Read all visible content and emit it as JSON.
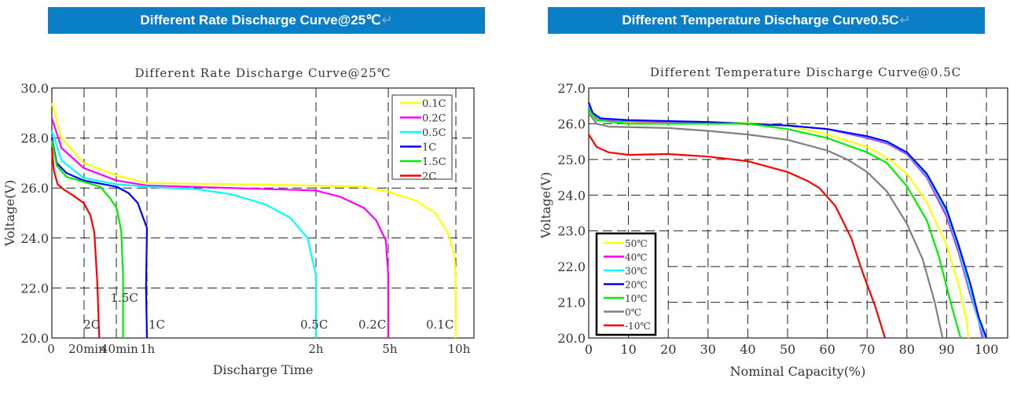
{
  "banners": {
    "left": {
      "text": "Different Rate Discharge Curve@25℃",
      "mark": "↵"
    },
    "right": {
      "text": "Different Temperature Discharge Curve0.5C",
      "mark": "↵"
    }
  },
  "chart_data": [
    {
      "type": "line",
      "title": "Different Rate Discharge Curve@25℃",
      "xlabel": "Discharge Time",
      "ylabel": "Voltage(V)",
      "ylim": [
        20,
        30
      ],
      "yticks": [
        20,
        22,
        24,
        26,
        28,
        30
      ],
      "ytick_labels": [
        "20.0",
        "22.0",
        "24.0",
        "26.0",
        "28.0",
        "30.0"
      ],
      "x_unit": "hours (piecewise axis)",
      "xticks": [
        0,
        0.3333,
        0.6667,
        1,
        2,
        5,
        10
      ],
      "xtick_labels": [
        "0",
        "20min",
        "40min",
        "1h",
        "2h",
        "5h",
        "10h"
      ],
      "grid": true,
      "legend_position": "top-right",
      "series": [
        {
          "name": "0.1C",
          "color": "#ffff00",
          "label": "0.1C",
          "points": [
            [
              0,
              29.4
            ],
            [
              0.1,
              28
            ],
            [
              0.33,
              27
            ],
            [
              0.67,
              26.5
            ],
            [
              1,
              26.2
            ],
            [
              2,
              26.1
            ],
            [
              4,
              26.05
            ],
            [
              5,
              25.85
            ],
            [
              7,
              25.5
            ],
            [
              8.5,
              25
            ],
            [
              9.4,
              24.2
            ],
            [
              9.9,
              23.3
            ],
            [
              10,
              22
            ],
            [
              10,
              20
            ]
          ]
        },
        {
          "name": "0.2C",
          "color": "#ff00ff",
          "label": "0.2C",
          "points": [
            [
              0,
              28.8
            ],
            [
              0.1,
              27.6
            ],
            [
              0.33,
              26.8
            ],
            [
              0.67,
              26.3
            ],
            [
              1,
              26.1
            ],
            [
              2,
              25.9
            ],
            [
              3,
              25.65
            ],
            [
              4,
              25.2
            ],
            [
              4.5,
              24.7
            ],
            [
              4.9,
              23.9
            ],
            [
              5,
              22.5
            ],
            [
              5,
              20
            ]
          ]
        },
        {
          "name": "0.5C",
          "color": "#00ffff",
          "label": "0.5C",
          "points": [
            [
              0,
              28.3
            ],
            [
              0.1,
              27.1
            ],
            [
              0.33,
              26.4
            ],
            [
              0.67,
              26.15
            ],
            [
              1,
              26.05
            ],
            [
              1.3,
              25.95
            ],
            [
              1.5,
              25.75
            ],
            [
              1.7,
              25.35
            ],
            [
              1.85,
              24.8
            ],
            [
              1.95,
              24
            ],
            [
              2,
              22.5
            ],
            [
              2,
              20
            ]
          ]
        },
        {
          "name": "1C",
          "color": "#0000ff",
          "label": "1C",
          "points": [
            [
              0,
              28
            ],
            [
              0.05,
              27
            ],
            [
              0.15,
              26.6
            ],
            [
              0.33,
              26.3
            ],
            [
              0.67,
              26.05
            ],
            [
              0.8,
              25.8
            ],
            [
              0.9,
              25.4
            ],
            [
              0.95,
              24.9
            ],
            [
              1,
              24.4
            ],
            [
              0.99,
              22
            ],
            [
              1,
              20
            ]
          ]
        },
        {
          "name": "1.5C",
          "color": "#00ee00",
          "label": "1.5C",
          "points": [
            [
              0,
              27.9
            ],
            [
              0.05,
              26.9
            ],
            [
              0.15,
              26.45
            ],
            [
              0.33,
              26.25
            ],
            [
              0.5,
              26.05
            ],
            [
              0.6,
              25.6
            ],
            [
              0.67,
              25.2
            ],
            [
              0.72,
              24.3
            ],
            [
              0.74,
              22.5
            ],
            [
              0.74,
              20
            ]
          ]
        },
        {
          "name": "2C",
          "color": "#ff0000",
          "label": "2C",
          "points": [
            [
              0,
              27.6
            ],
            [
              0.02,
              26.7
            ],
            [
              0.06,
              26.15
            ],
            [
              0.12,
              25.95
            ],
            [
              0.22,
              25.7
            ],
            [
              0.33,
              25.4
            ],
            [
              0.4,
              24.9
            ],
            [
              0.44,
              24.2
            ],
            [
              0.47,
              22.2
            ],
            [
              0.49,
              20
            ]
          ]
        }
      ]
    },
    {
      "type": "line",
      "title": "Different Temperature Discharge Curve@0.5C",
      "xlabel": "Nominal Capacity(%)",
      "ylabel": "Voltage(V)",
      "xlim": [
        0,
        100
      ],
      "ylim": [
        20,
        27
      ],
      "xticks": [
        0,
        10,
        20,
        30,
        40,
        50,
        60,
        70,
        80,
        90,
        100
      ],
      "xtick_labels": [
        "0",
        "10",
        "20",
        "30",
        "40",
        "50",
        "60",
        "70",
        "80",
        "90",
        "100"
      ],
      "yticks": [
        20,
        21,
        22,
        23,
        24,
        25,
        26,
        27
      ],
      "ytick_labels": [
        "20.0",
        "21.0",
        "22.0",
        "23.0",
        "24.0",
        "25.0",
        "26.0",
        "27.0"
      ],
      "grid": true,
      "legend_position": "bottom-left",
      "series": [
        {
          "name": "50℃",
          "color": "#ffff00",
          "points": [
            [
              0,
              26.5
            ],
            [
              2,
              26.1
            ],
            [
              10,
              26.03
            ],
            [
              40,
              26.02
            ],
            [
              50,
              25.95
            ],
            [
              60,
              25.7
            ],
            [
              70,
              25.35
            ],
            [
              75,
              25.05
            ],
            [
              80,
              24.6
            ],
            [
              85,
              23.8
            ],
            [
              90,
              22.6
            ],
            [
              93,
              21.5
            ],
            [
              95,
              20.5
            ],
            [
              95.5,
              20
            ]
          ]
        },
        {
          "name": "40℃",
          "color": "#ff00ff",
          "points": [
            [
              0,
              26.5
            ],
            [
              1,
              26.25
            ],
            [
              3,
              26.12
            ],
            [
              10,
              26.07
            ],
            [
              30,
              26.03
            ],
            [
              50,
              25.95
            ],
            [
              60,
              25.85
            ],
            [
              70,
              25.6
            ],
            [
              75,
              25.45
            ],
            [
              80,
              25.15
            ],
            [
              85,
              24.5
            ],
            [
              90,
              23.4
            ],
            [
              93,
              22.4
            ],
            [
              96,
              21.2
            ],
            [
              98,
              20.5
            ],
            [
              99,
              20
            ]
          ]
        },
        {
          "name": "30℃",
          "color": "#00ffff",
          "points": [
            [
              0,
              26.55
            ],
            [
              1,
              26.28
            ],
            [
              3,
              26.14
            ],
            [
              10,
              26.09
            ],
            [
              30,
              26.05
            ],
            [
              50,
              25.95
            ],
            [
              60,
              25.85
            ],
            [
              70,
              25.63
            ],
            [
              75,
              25.48
            ],
            [
              80,
              25.18
            ],
            [
              85,
              24.55
            ],
            [
              90,
              23.5
            ],
            [
              93,
              22.5
            ],
            [
              96,
              21.3
            ],
            [
              98,
              20.5
            ],
            [
              99.5,
              20
            ]
          ]
        },
        {
          "name": "20℃",
          "color": "#0000ff",
          "points": [
            [
              0,
              26.6
            ],
            [
              1,
              26.3
            ],
            [
              3,
              26.15
            ],
            [
              10,
              26.1
            ],
            [
              30,
              26.05
            ],
            [
              50,
              25.95
            ],
            [
              60,
              25.85
            ],
            [
              70,
              25.65
            ],
            [
              75,
              25.5
            ],
            [
              80,
              25.2
            ],
            [
              85,
              24.6
            ],
            [
              90,
              23.6
            ],
            [
              93,
              22.6
            ],
            [
              96,
              21.5
            ],
            [
              98,
              20.6
            ],
            [
              100,
              20
            ]
          ]
        },
        {
          "name": "10℃",
          "color": "#00ee00",
          "points": [
            [
              0,
              26.4
            ],
            [
              2,
              26.1
            ],
            [
              10,
              26.0
            ],
            [
              40,
              26.0
            ],
            [
              50,
              25.85
            ],
            [
              60,
              25.6
            ],
            [
              70,
              25.2
            ],
            [
              75,
              24.9
            ],
            [
              80,
              24.25
            ],
            [
              85,
              23.3
            ],
            [
              88,
              22.3
            ],
            [
              91,
              21
            ],
            [
              93.5,
              20
            ]
          ]
        },
        {
          "name": "0℃",
          "color": "#808080",
          "points": [
            [
              0,
              26.3
            ],
            [
              2,
              26
            ],
            [
              5,
              25.92
            ],
            [
              20,
              25.88
            ],
            [
              30,
              25.8
            ],
            [
              40,
              25.7
            ],
            [
              50,
              25.55
            ],
            [
              60,
              25.25
            ],
            [
              65,
              25
            ],
            [
              70,
              24.65
            ],
            [
              75,
              24.1
            ],
            [
              80,
              23.2
            ],
            [
              84,
              22.2
            ],
            [
              87,
              21
            ],
            [
              89,
              20
            ]
          ]
        },
        {
          "name": "-10℃",
          "color": "#ff0000",
          "points": [
            [
              0,
              25.7
            ],
            [
              2,
              25.35
            ],
            [
              5,
              25.2
            ],
            [
              10,
              25.13
            ],
            [
              20,
              25.15
            ],
            [
              30,
              25.08
            ],
            [
              40,
              24.95
            ],
            [
              50,
              24.65
            ],
            [
              55,
              24.4
            ],
            [
              58,
              24.2
            ],
            [
              62,
              23.7
            ],
            [
              66,
              22.8
            ],
            [
              69,
              21.8
            ],
            [
              72,
              20.9
            ],
            [
              74.5,
              20
            ]
          ]
        }
      ]
    }
  ]
}
